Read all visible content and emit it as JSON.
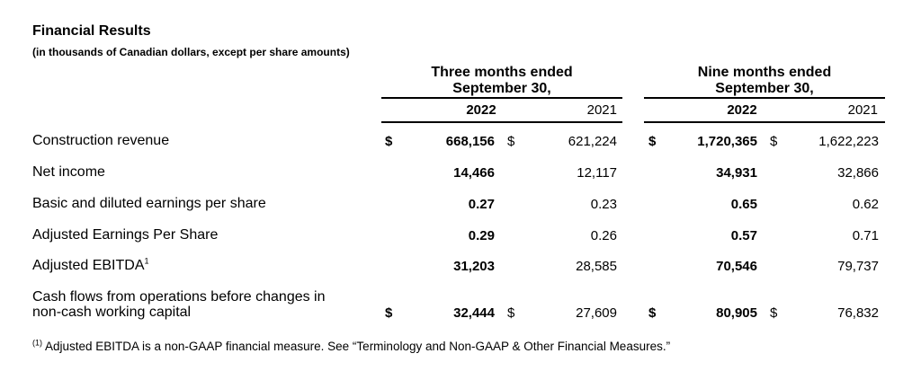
{
  "header": {
    "title": "Financial Results",
    "subtitle": "(in thousands of Canadian dollars, except per share amounts)"
  },
  "groups": {
    "three": {
      "line1": "Three months ended",
      "line2": "September 30,"
    },
    "nine": {
      "line1": "Nine months ended",
      "line2": "September 30,"
    }
  },
  "years": {
    "current": "2022",
    "prior": "2021"
  },
  "currency_symbol": "$",
  "rows": [
    {
      "label": "Construction revenue",
      "sup": "",
      "three_2022": "668,156",
      "three_2021": "621,224",
      "nine_2022": "1,720,365",
      "nine_2021": "1,622,223"
    },
    {
      "label": "Net income",
      "sup": "",
      "three_2022": "14,466",
      "three_2021": "12,117",
      "nine_2022": "34,931",
      "nine_2021": "32,866"
    },
    {
      "label": "Basic and diluted earnings per share",
      "sup": "",
      "three_2022": "0.27",
      "three_2021": "0.23",
      "nine_2022": "0.65",
      "nine_2021": "0.62"
    },
    {
      "label": "Adjusted Earnings Per Share",
      "sup": "",
      "three_2022": "0.29",
      "three_2021": "0.26",
      "nine_2022": "0.57",
      "nine_2021": "0.71"
    },
    {
      "label": "Adjusted EBITDA",
      "sup": "1",
      "three_2022": "31,203",
      "three_2021": "28,585",
      "nine_2022": "70,546",
      "nine_2021": "79,737"
    },
    {
      "label_line1": "Cash flows from operations before changes in",
      "label_line2": "non-cash working capital",
      "three_2022": "32,444",
      "three_2021": "27,609",
      "nine_2022": "80,905",
      "nine_2021": "76,832"
    }
  ],
  "footnote": {
    "marker": "(1)",
    "text": " Adjusted EBITDA is a non-GAAP financial measure. See “Terminology and Non-GAAP & Other Financial Measures.”"
  }
}
